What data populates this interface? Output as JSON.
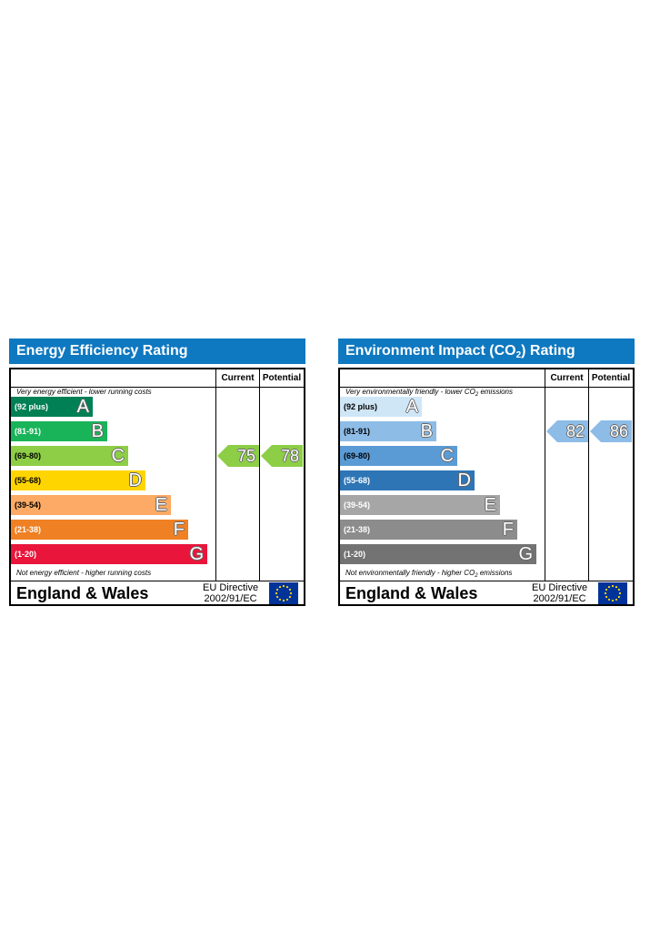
{
  "colors": {
    "header_bg": "#0e78c0",
    "ee_bands": [
      "#008054",
      "#19b459",
      "#8dce46",
      "#ffd500",
      "#fcaa65",
      "#ef8023",
      "#e9153b"
    ],
    "ee_arrow": "#8dce46",
    "ei_bands": [
      "#cfe6f7",
      "#8dbce7",
      "#5b9bd5",
      "#2e75b6",
      "#a6a6a6",
      "#8c8c8c",
      "#737373"
    ],
    "ei_arrow": "#8dbce7",
    "eu_flag_bg": "#003399",
    "eu_flag_star": "#ffdd00"
  },
  "icons": {
    "eu_flag": "eu-flag-icon"
  },
  "chart_data": [
    {
      "type": "bar",
      "title": "Energy Efficiency Rating",
      "columns": [
        "Current",
        "Potential"
      ],
      "top_note": "Very energy efficient - lower running costs",
      "bottom_note": "Not energy efficient - higher running costs",
      "bands": [
        {
          "range": "(92 plus)",
          "letter": "A",
          "min": 92,
          "max": 100
        },
        {
          "range": "(81-91)",
          "letter": "B",
          "min": 81,
          "max": 91
        },
        {
          "range": "(69-80)",
          "letter": "C",
          "min": 69,
          "max": 80
        },
        {
          "range": "(55-68)",
          "letter": "D",
          "min": 55,
          "max": 68
        },
        {
          "range": "(39-54)",
          "letter": "E",
          "min": 39,
          "max": 54
        },
        {
          "range": "(21-38)",
          "letter": "F",
          "min": 21,
          "max": 38
        },
        {
          "range": "(1-20)",
          "letter": "G",
          "min": 1,
          "max": 20
        }
      ],
      "current": 75,
      "potential": 78,
      "footer": "England & Wales",
      "directive_line1": "EU Directive",
      "directive_line2": "2002/91/EC"
    },
    {
      "type": "bar",
      "title_main": "Environment Impact (CO",
      "title_sub": "2",
      "title_end": ") Rating",
      "columns": [
        "Current",
        "Potential"
      ],
      "top_note_main": "Very environmentally friendly - lower CO",
      "top_note_sub": "2",
      "top_note_end": " emissions",
      "bottom_note_main": "Not environmentally friendly - higher CO",
      "bottom_note_sub": "2",
      "bottom_note_end": " emissions",
      "bands": [
        {
          "range": "(92 plus)",
          "letter": "A",
          "min": 92,
          "max": 100
        },
        {
          "range": "(81-91)",
          "letter": "B",
          "min": 81,
          "max": 91
        },
        {
          "range": "(69-80)",
          "letter": "C",
          "min": 69,
          "max": 80
        },
        {
          "range": "(55-68)",
          "letter": "D",
          "min": 55,
          "max": 68
        },
        {
          "range": "(39-54)",
          "letter": "E",
          "min": 39,
          "max": 54
        },
        {
          "range": "(21-38)",
          "letter": "F",
          "min": 21,
          "max": 38
        },
        {
          "range": "(1-20)",
          "letter": "G",
          "min": 1,
          "max": 20
        }
      ],
      "current": 82,
      "potential": 86,
      "footer": "England & Wales",
      "directive_line1": "EU Directive",
      "directive_line2": "2002/91/EC"
    }
  ]
}
